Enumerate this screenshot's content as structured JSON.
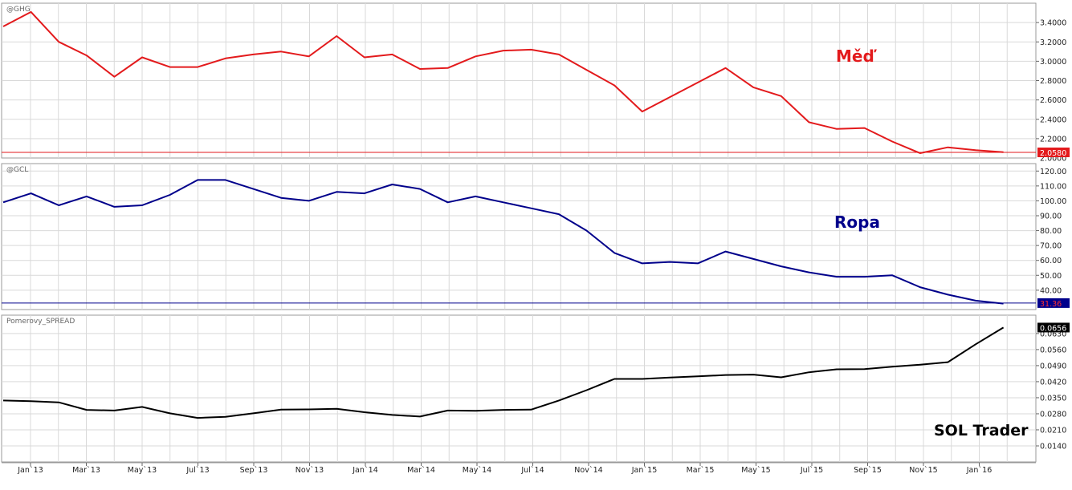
{
  "x_labels": [
    "Jan`13",
    "Mar`13",
    "May`13",
    "Jul`13",
    "Sep`13",
    "Nov`13",
    "Jan`14",
    "Mar`14",
    "May`14",
    "Jul`14",
    "Nov`14",
    "Jan`15",
    "Mar`15",
    "May`15",
    "Jul`15",
    "Sep`15",
    "Nov`15",
    "Jan`16"
  ],
  "watermark": "SOL Trader",
  "colors": {
    "copper": "#e31a1c",
    "oil": "#00008b",
    "spread": "#000000",
    "grid": "#d9d9d9",
    "panel_border": "#9a9a9a"
  },
  "chart_data": [
    {
      "type": "line",
      "symbol": "@GHG",
      "label": "Měď",
      "ylim": [
        2.0,
        3.6
      ],
      "yticks": [
        2.2,
        2.4,
        2.6,
        2.8,
        3.0,
        3.2,
        3.4
      ],
      "tick_labels": [
        "2.2000",
        "2.4000",
        "2.6000",
        "2.8000",
        "3.0000",
        "3.2000",
        "3.4000"
      ],
      "hidden_tick_label": "2.0000",
      "last_value": 2.058,
      "last_label": "2.0580",
      "values": [
        3.36,
        3.51,
        3.2,
        3.06,
        2.84,
        3.04,
        2.94,
        2.94,
        3.03,
        3.07,
        3.1,
        3.05,
        3.26,
        3.04,
        3.07,
        2.92,
        2.93,
        3.05,
        3.11,
        3.12,
        3.07,
        2.91,
        2.75,
        2.48,
        2.63,
        2.78,
        2.93,
        2.73,
        2.64,
        2.37,
        2.3,
        2.31,
        2.17,
        2.05,
        2.11,
        2.08,
        2.06
      ]
    },
    {
      "type": "line",
      "symbol": "@GCL",
      "label": "Ropa",
      "ylim": [
        27,
        125
      ],
      "yticks": [
        40,
        50,
        60,
        70,
        80,
        90,
        100,
        110,
        120
      ],
      "tick_labels": [
        "40.00",
        "50.00",
        "60.00",
        "70.00",
        "80.00",
        "90.00",
        "100.00",
        "110.00",
        "120.00"
      ],
      "last_value": 31.36,
      "last_label": "31.36",
      "values": [
        99,
        105,
        97,
        103,
        96,
        97,
        104,
        114,
        114,
        108,
        102,
        100,
        106,
        105,
        111,
        108,
        99,
        103,
        99,
        95,
        91,
        80,
        65,
        58,
        59,
        58,
        66,
        61,
        56,
        52,
        49,
        49,
        50,
        42,
        37,
        33,
        31
      ]
    },
    {
      "type": "line",
      "symbol": "Pomerovy_SPREAD",
      "label": "",
      "ylim": [
        0.007,
        0.071
      ],
      "yticks": [
        0.014,
        0.021,
        0.028,
        0.035,
        0.042,
        0.049,
        0.056,
        0.063
      ],
      "tick_labels": [
        "0.0140",
        "0.0210",
        "0.0280",
        "0.0350",
        "0.0420",
        "0.0490",
        "0.0560",
        "0.0630"
      ],
      "last_value": 0.0656,
      "last_label": "0.0656",
      "values": [
        0.0338,
        0.0335,
        0.033,
        0.0297,
        0.0294,
        0.031,
        0.0282,
        0.0262,
        0.0267,
        0.0282,
        0.0298,
        0.0299,
        0.0302,
        0.0287,
        0.0275,
        0.0268,
        0.0294,
        0.0293,
        0.0297,
        0.0298,
        0.0338,
        0.0383,
        0.0432,
        0.0432,
        0.0438,
        0.0443,
        0.0449,
        0.0451,
        0.0439,
        0.0461,
        0.0474,
        0.0475,
        0.0485,
        0.0494,
        0.0505,
        0.0583,
        0.0656
      ]
    }
  ]
}
